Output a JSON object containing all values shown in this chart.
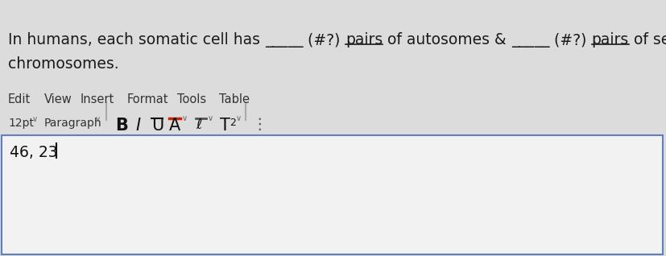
{
  "bg_color": "#dcdcdc",
  "editor_bg": "#efefef",
  "text_color": "#1a1a1a",
  "menu_color": "#333333",
  "line1_parts": [
    {
      "text": "In humans, each somatic cell has ",
      "bold": false,
      "underline": false
    },
    {
      "text": "_____",
      "bold": false,
      "underline": false
    },
    {
      "text": " (#?) ",
      "bold": false,
      "underline": false
    },
    {
      "text": "pairs",
      "bold": false,
      "underline": true
    },
    {
      "text": " of autosomes & ",
      "bold": false,
      "underline": false
    },
    {
      "text": "_____",
      "bold": false,
      "underline": false
    },
    {
      "text": " (#?) ",
      "bold": false,
      "underline": false
    },
    {
      "text": "pairs",
      "bold": false,
      "underline": true
    },
    {
      "text": " of sex",
      "bold": false,
      "underline": false
    }
  ],
  "line2": "chromosomes.",
  "menu_items": [
    "Edit",
    "View",
    "Insert",
    "Format",
    "Tools",
    "Table"
  ],
  "menu_x": [
    10,
    55,
    100,
    158,
    220,
    272
  ],
  "font_size_label": "12pt",
  "paragraph_label": "Paragraph",
  "editor_text": "46, 23",
  "figsize": [
    8.27,
    3.18
  ],
  "dpi": 100
}
